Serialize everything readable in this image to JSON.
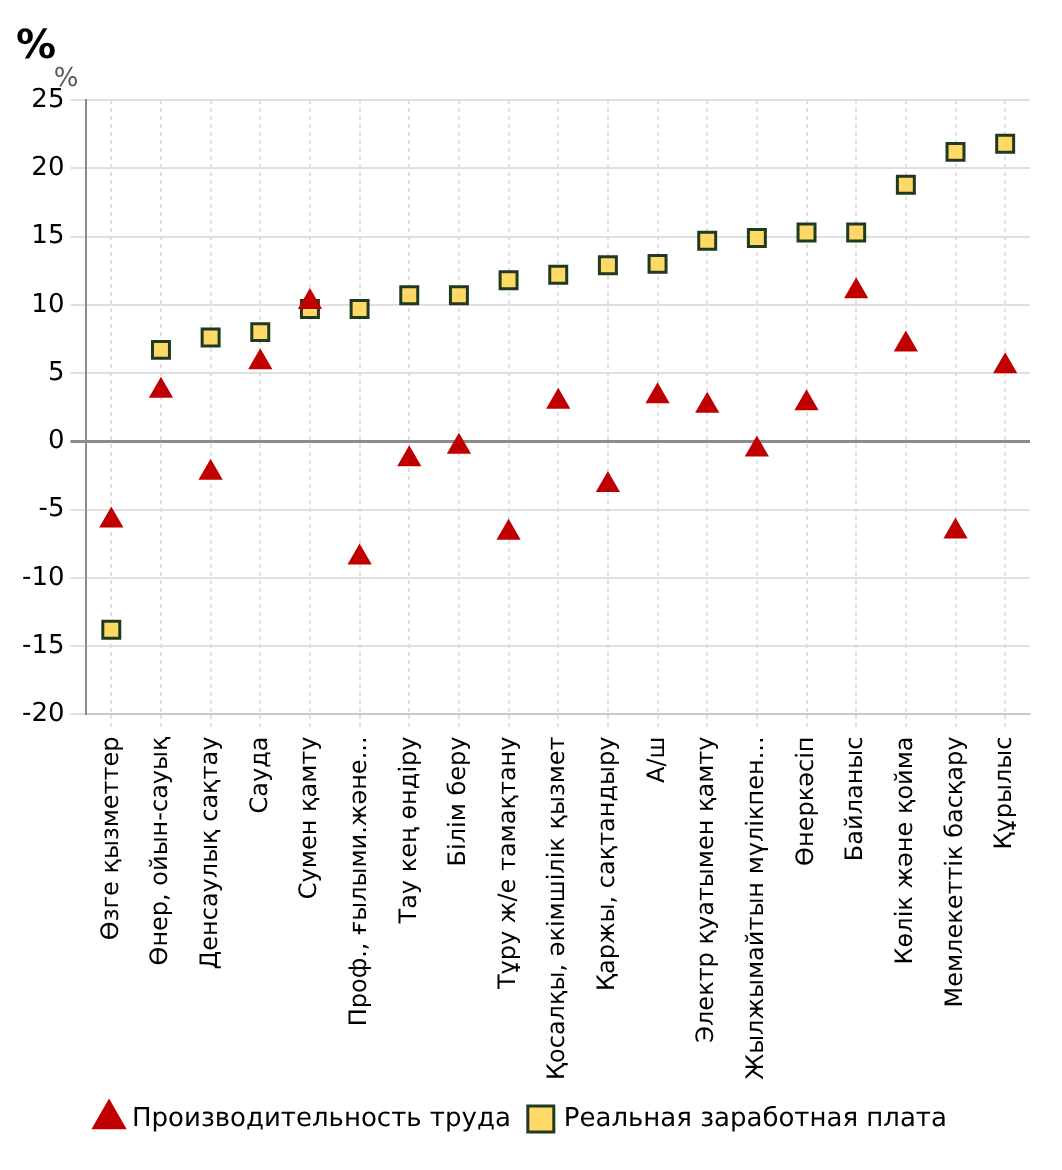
{
  "chart_data": {
    "type": "scatter",
    "title": "%",
    "ylabel": "%",
    "categories": [
      "Өзге қызметтер",
      "Өнер, ойын-сауық",
      "Денсаулық сақтау",
      "Сауда",
      "Сумен қамту",
      "Проф., ғылыми.және...",
      "Тау кең өндіру",
      "Білім беру",
      "Тұру ж/е тамақтану",
      "Қосалқы, әкімшілік қызмет",
      "Қаржы, сақтандыру",
      "А/ш",
      "Электр қуатымен қамту",
      "Жылжымайтын мүлікпен...",
      "Өнеркәсіп",
      "Байланыс",
      "Көлік және қойма",
      "Мемлекеттік басқару",
      "Құрылыс"
    ],
    "series": [
      {
        "name": "Производительность труда",
        "color": "#c00000",
        "marker": "triangle",
        "values": [
          -5.8,
          3.7,
          -2.3,
          5.8,
          10.2,
          -8.5,
          -1.3,
          -0.4,
          -6.7,
          2.9,
          -3.2,
          3.3,
          2.6,
          -0.6,
          2.8,
          11.0,
          7.1,
          -6.6,
          5.5
        ]
      },
      {
        "name": "Реальная заработная плата",
        "color": "#ffd966",
        "marker": "square",
        "values": [
          -13.8,
          6.7,
          7.6,
          8.0,
          9.7,
          9.7,
          10.7,
          10.7,
          11.8,
          12.2,
          12.9,
          13.0,
          14.7,
          14.9,
          15.3,
          15.3,
          18.8,
          21.2,
          21.8
        ]
      }
    ],
    "ylim": [
      -20,
      25
    ],
    "yticks": [
      -20,
      -15,
      -10,
      -5,
      0,
      5,
      10,
      15,
      20,
      25
    ],
    "grid": true,
    "legend": "bottom"
  }
}
